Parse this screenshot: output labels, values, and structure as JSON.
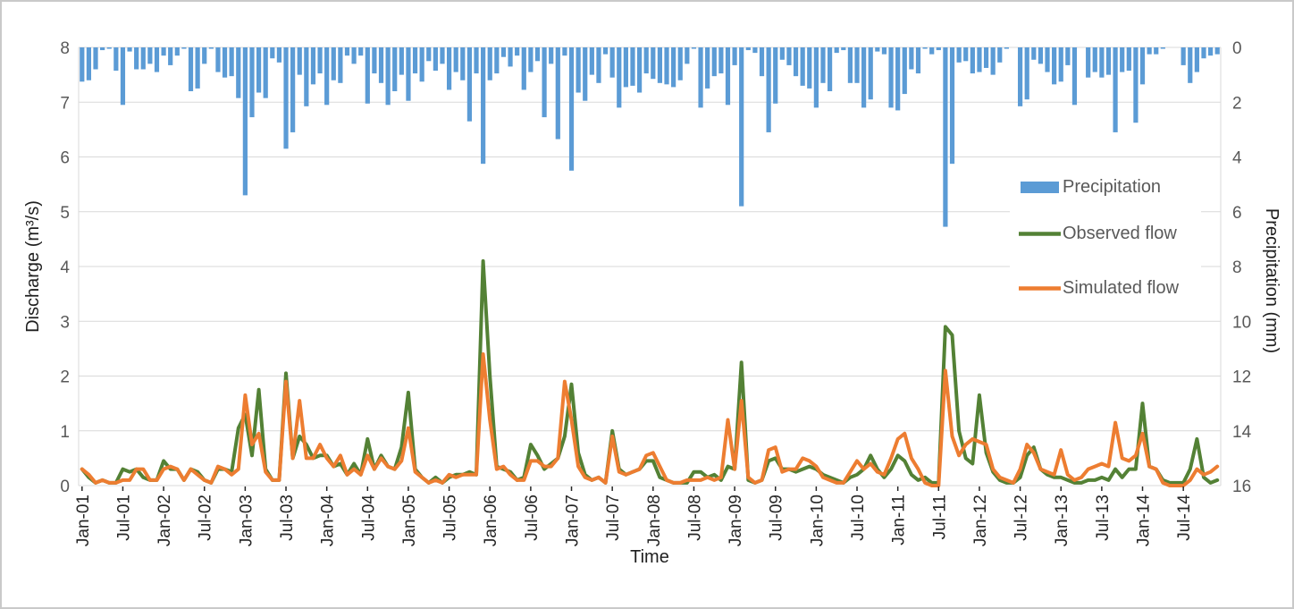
{
  "window": {
    "background": "#ffffff",
    "border_color": "#c9c9c9"
  },
  "chart_data": {
    "type": "composite",
    "subtype": "bar+line dual axis hydrograph",
    "grid": true,
    "gridline_color": "#d9d9d9",
    "plot_border_color": "#d9d9d9",
    "y_tick_label_color": "#595959",
    "x_tick_label_color": "#262626",
    "axis_title_color": "#1f1f1f",
    "x_axis": {
      "title": "Time",
      "tick_every": 6,
      "categories": [
        "Jan-01",
        "Feb-01",
        "Mar-01",
        "Apr-01",
        "May-01",
        "Jun-01",
        "Jul-01",
        "Aug-01",
        "Sep-01",
        "Oct-01",
        "Nov-01",
        "Dec-01",
        "Jan-02",
        "Feb-02",
        "Mar-02",
        "Apr-02",
        "May-02",
        "Jun-02",
        "Jul-02",
        "Aug-02",
        "Sep-02",
        "Oct-02",
        "Nov-02",
        "Dec-02",
        "Jan-03",
        "Feb-03",
        "Mar-03",
        "Apr-03",
        "May-03",
        "Jun-03",
        "Jul-03",
        "Aug-03",
        "Sep-03",
        "Oct-03",
        "Nov-03",
        "Dec-03",
        "Jan-04",
        "Feb-04",
        "Mar-04",
        "Apr-04",
        "May-04",
        "Jun-04",
        "Jul-04",
        "Aug-04",
        "Sep-04",
        "Oct-04",
        "Nov-04",
        "Dec-04",
        "Jan-05",
        "Feb-05",
        "Mar-05",
        "Apr-05",
        "May-05",
        "Jun-05",
        "Jul-05",
        "Aug-05",
        "Sep-05",
        "Oct-05",
        "Nov-05",
        "Dec-05",
        "Jan-06",
        "Feb-06",
        "Mar-06",
        "Apr-06",
        "May-06",
        "Jun-06",
        "Jul-06",
        "Aug-06",
        "Sep-06",
        "Oct-06",
        "Nov-06",
        "Dec-06",
        "Jan-07",
        "Feb-07",
        "Mar-07",
        "Apr-07",
        "May-07",
        "Jun-07",
        "Jul-07",
        "Aug-07",
        "Sep-07",
        "Oct-07",
        "Nov-07",
        "Dec-07",
        "Jan-08",
        "Feb-08",
        "Mar-08",
        "Apr-08",
        "May-08",
        "Jun-08",
        "Jul-08",
        "Aug-08",
        "Sep-08",
        "Oct-08",
        "Nov-08",
        "Dec-08",
        "Jan-09",
        "Feb-09",
        "Mar-09",
        "Apr-09",
        "May-09",
        "Jun-09",
        "Jul-09",
        "Aug-09",
        "Sep-09",
        "Oct-09",
        "Nov-09",
        "Dec-09",
        "Jan-10",
        "Feb-10",
        "Mar-10",
        "Apr-10",
        "May-10",
        "Jun-10",
        "Jul-10",
        "Aug-10",
        "Sep-10",
        "Oct-10",
        "Nov-10",
        "Dec-10",
        "Jan-11",
        "Feb-11",
        "Mar-11",
        "Apr-11",
        "May-11",
        "Jun-11",
        "Jul-11",
        "Aug-11",
        "Sep-11",
        "Oct-11",
        "Nov-11",
        "Dec-11",
        "Jan-12",
        "Feb-12",
        "Mar-12",
        "Apr-12",
        "May-12",
        "Jun-12",
        "Jul-12",
        "Aug-12",
        "Sep-12",
        "Oct-12",
        "Nov-12",
        "Dec-12",
        "Jan-13",
        "Feb-13",
        "Mar-13",
        "Apr-13",
        "May-13",
        "Jun-13",
        "Jul-13",
        "Aug-13",
        "Sep-13",
        "Oct-13",
        "Nov-13",
        "Dec-13",
        "Jan-14",
        "Feb-14",
        "Mar-14",
        "Apr-14",
        "May-14",
        "Jun-14",
        "Jul-14",
        "Aug-14",
        "Sep-14",
        "Oct-14",
        "Nov-14",
        "Dec-14"
      ]
    },
    "y_axis_left": {
      "title": "Discharge (m³/s)",
      "min": 0,
      "max": 8,
      "ticks": [
        0,
        1,
        2,
        3,
        4,
        5,
        6,
        7,
        8
      ]
    },
    "y_axis_right": {
      "title": "Precipitation (mm)",
      "min": 0,
      "max": 16,
      "inverted": true,
      "ticks": [
        0,
        2,
        4,
        6,
        8,
        10,
        12,
        14,
        16
      ]
    },
    "legend": {
      "position": "middle-right",
      "background": "#ffffff",
      "entries": [
        {
          "label": "Precipitation",
          "swatch": "bar",
          "color": "#5B9BD5"
        },
        {
          "label": "Observed flow",
          "swatch": "line",
          "color": "#538135"
        },
        {
          "label": "Simulated flow",
          "swatch": "line",
          "color": "#ED7D31"
        }
      ]
    },
    "series": [
      {
        "name": "Precipitation",
        "type": "bar",
        "axis": "right",
        "unit": "mm",
        "color": "#5B9BD5",
        "values": [
          1.25,
          1.2,
          0.8,
          0.1,
          0.05,
          0.85,
          2.1,
          0.15,
          0.8,
          0.8,
          0.6,
          0.9,
          0.3,
          0.65,
          0.3,
          0.05,
          1.6,
          1.5,
          0.6,
          0.05,
          0.9,
          1.1,
          1.05,
          1.85,
          5.4,
          2.55,
          1.65,
          1.85,
          0.4,
          0.55,
          3.7,
          3.1,
          1.0,
          2.15,
          1.35,
          0.95,
          2.1,
          1.2,
          1.3,
          0.3,
          0.6,
          0.3,
          2.05,
          0.95,
          1.3,
          2.1,
          1.6,
          1.0,
          1.95,
          0.95,
          1.25,
          0.5,
          0.85,
          0.6,
          1.55,
          0.9,
          1.2,
          2.7,
          0.95,
          4.25,
          1.2,
          0.95,
          0.35,
          0.7,
          0.3,
          1.55,
          0.9,
          0.5,
          2.55,
          0.6,
          3.35,
          0.3,
          4.5,
          1.65,
          1.95,
          1.0,
          1.3,
          0.25,
          1.1,
          2.2,
          1.45,
          1.4,
          1.65,
          0.95,
          1.15,
          1.3,
          1.35,
          1.45,
          1.2,
          0.6,
          0.05,
          2.2,
          1.5,
          1.05,
          0.95,
          2.1,
          0.65,
          5.8,
          0.1,
          0.2,
          1.05,
          3.1,
          2.05,
          0.45,
          0.65,
          1.05,
          1.4,
          1.5,
          2.2,
          1.3,
          1.6,
          0.2,
          0.1,
          1.3,
          1.3,
          2.2,
          1.9,
          0.15,
          0.25,
          2.2,
          2.3,
          1.7,
          0.8,
          0.95,
          0.05,
          0.25,
          0.1,
          6.55,
          4.25,
          0.55,
          0.5,
          0.95,
          0.9,
          0.75,
          1.0,
          0.55,
          0.05,
          0.0,
          2.15,
          1.9,
          0.45,
          0.6,
          0.9,
          1.35,
          1.25,
          0.65,
          2.1,
          0.0,
          1.1,
          0.9,
          1.1,
          1.0,
          3.1,
          0.9,
          0.85,
          2.75,
          1.35,
          0.25,
          0.25,
          0.05,
          0.0,
          0.0,
          0.65,
          1.3,
          0.9,
          0.4,
          0.3,
          0.25
        ]
      },
      {
        "name": "Observed flow",
        "type": "line",
        "axis": "left",
        "unit": "m³/s",
        "color": "#538135",
        "values": [
          0.3,
          0.15,
          0.05,
          0.1,
          0.05,
          0.05,
          0.3,
          0.25,
          0.3,
          0.15,
          0.1,
          0.1,
          0.45,
          0.3,
          0.3,
          0.1,
          0.3,
          0.25,
          0.1,
          0.05,
          0.3,
          0.3,
          0.25,
          1.05,
          1.3,
          0.55,
          1.75,
          0.3,
          0.1,
          0.1,
          2.05,
          0.5,
          0.9,
          0.75,
          0.5,
          0.55,
          0.55,
          0.35,
          0.4,
          0.2,
          0.4,
          0.2,
          0.85,
          0.3,
          0.55,
          0.35,
          0.3,
          0.7,
          1.7,
          0.3,
          0.15,
          0.05,
          0.15,
          0.05,
          0.15,
          0.2,
          0.2,
          0.25,
          0.2,
          4.1,
          2.0,
          0.35,
          0.3,
          0.25,
          0.1,
          0.15,
          0.75,
          0.55,
          0.3,
          0.4,
          0.5,
          0.9,
          1.85,
          0.6,
          0.2,
          0.1,
          0.15,
          0.05,
          1.0,
          0.3,
          0.2,
          0.25,
          0.3,
          0.45,
          0.45,
          0.15,
          0.1,
          0.05,
          0.05,
          0.05,
          0.25,
          0.25,
          0.15,
          0.2,
          0.1,
          0.35,
          0.3,
          2.25,
          0.1,
          0.05,
          0.1,
          0.45,
          0.5,
          0.3,
          0.3,
          0.25,
          0.3,
          0.35,
          0.3,
          0.2,
          0.15,
          0.1,
          0.05,
          0.15,
          0.2,
          0.3,
          0.55,
          0.3,
          0.15,
          0.3,
          0.55,
          0.45,
          0.2,
          0.1,
          0.15,
          0.05,
          0.05,
          2.9,
          2.75,
          1.0,
          0.5,
          0.4,
          1.65,
          0.6,
          0.25,
          0.1,
          0.05,
          0.05,
          0.15,
          0.55,
          0.7,
          0.3,
          0.2,
          0.15,
          0.15,
          0.1,
          0.05,
          0.05,
          0.1,
          0.1,
          0.15,
          0.1,
          0.3,
          0.15,
          0.3,
          0.3,
          1.5,
          0.35,
          0.3,
          0.1,
          0.05,
          0.05,
          0.05,
          0.3,
          0.85,
          0.15,
          0.05,
          0.1
        ]
      },
      {
        "name": "Simulated flow",
        "type": "line",
        "axis": "left",
        "unit": "m³/s",
        "color": "#ED7D31",
        "values": [
          0.3,
          0.2,
          0.05,
          0.1,
          0.05,
          0.05,
          0.1,
          0.1,
          0.3,
          0.3,
          0.1,
          0.1,
          0.3,
          0.35,
          0.3,
          0.1,
          0.3,
          0.2,
          0.1,
          0.05,
          0.35,
          0.3,
          0.2,
          0.3,
          1.65,
          0.75,
          0.95,
          0.25,
          0.1,
          0.1,
          1.9,
          0.5,
          1.55,
          0.5,
          0.5,
          0.75,
          0.5,
          0.35,
          0.55,
          0.2,
          0.3,
          0.2,
          0.55,
          0.3,
          0.5,
          0.35,
          0.3,
          0.45,
          1.05,
          0.25,
          0.15,
          0.05,
          0.1,
          0.05,
          0.2,
          0.15,
          0.2,
          0.2,
          0.2,
          2.4,
          1.2,
          0.3,
          0.35,
          0.2,
          0.1,
          0.1,
          0.45,
          0.45,
          0.35,
          0.35,
          0.5,
          1.9,
          1.2,
          0.35,
          0.15,
          0.1,
          0.15,
          0.05,
          0.9,
          0.25,
          0.2,
          0.25,
          0.3,
          0.55,
          0.6,
          0.35,
          0.1,
          0.05,
          0.05,
          0.1,
          0.1,
          0.1,
          0.15,
          0.1,
          0.15,
          1.2,
          0.3,
          1.55,
          0.15,
          0.05,
          0.1,
          0.65,
          0.7,
          0.25,
          0.3,
          0.3,
          0.5,
          0.45,
          0.35,
          0.15,
          0.1,
          0.05,
          0.05,
          0.25,
          0.45,
          0.3,
          0.4,
          0.25,
          0.2,
          0.5,
          0.85,
          0.95,
          0.5,
          0.3,
          0.05,
          0.0,
          0.0,
          2.1,
          0.9,
          0.55,
          0.75,
          0.85,
          0.8,
          0.75,
          0.3,
          0.15,
          0.1,
          0.05,
          0.3,
          0.75,
          0.6,
          0.3,
          0.25,
          0.2,
          0.65,
          0.2,
          0.1,
          0.15,
          0.3,
          0.35,
          0.4,
          0.35,
          1.15,
          0.5,
          0.45,
          0.55,
          0.95,
          0.35,
          0.3,
          0.05,
          0.0,
          0.0,
          0.0,
          0.1,
          0.3,
          0.2,
          0.25,
          0.35
        ]
      }
    ]
  }
}
